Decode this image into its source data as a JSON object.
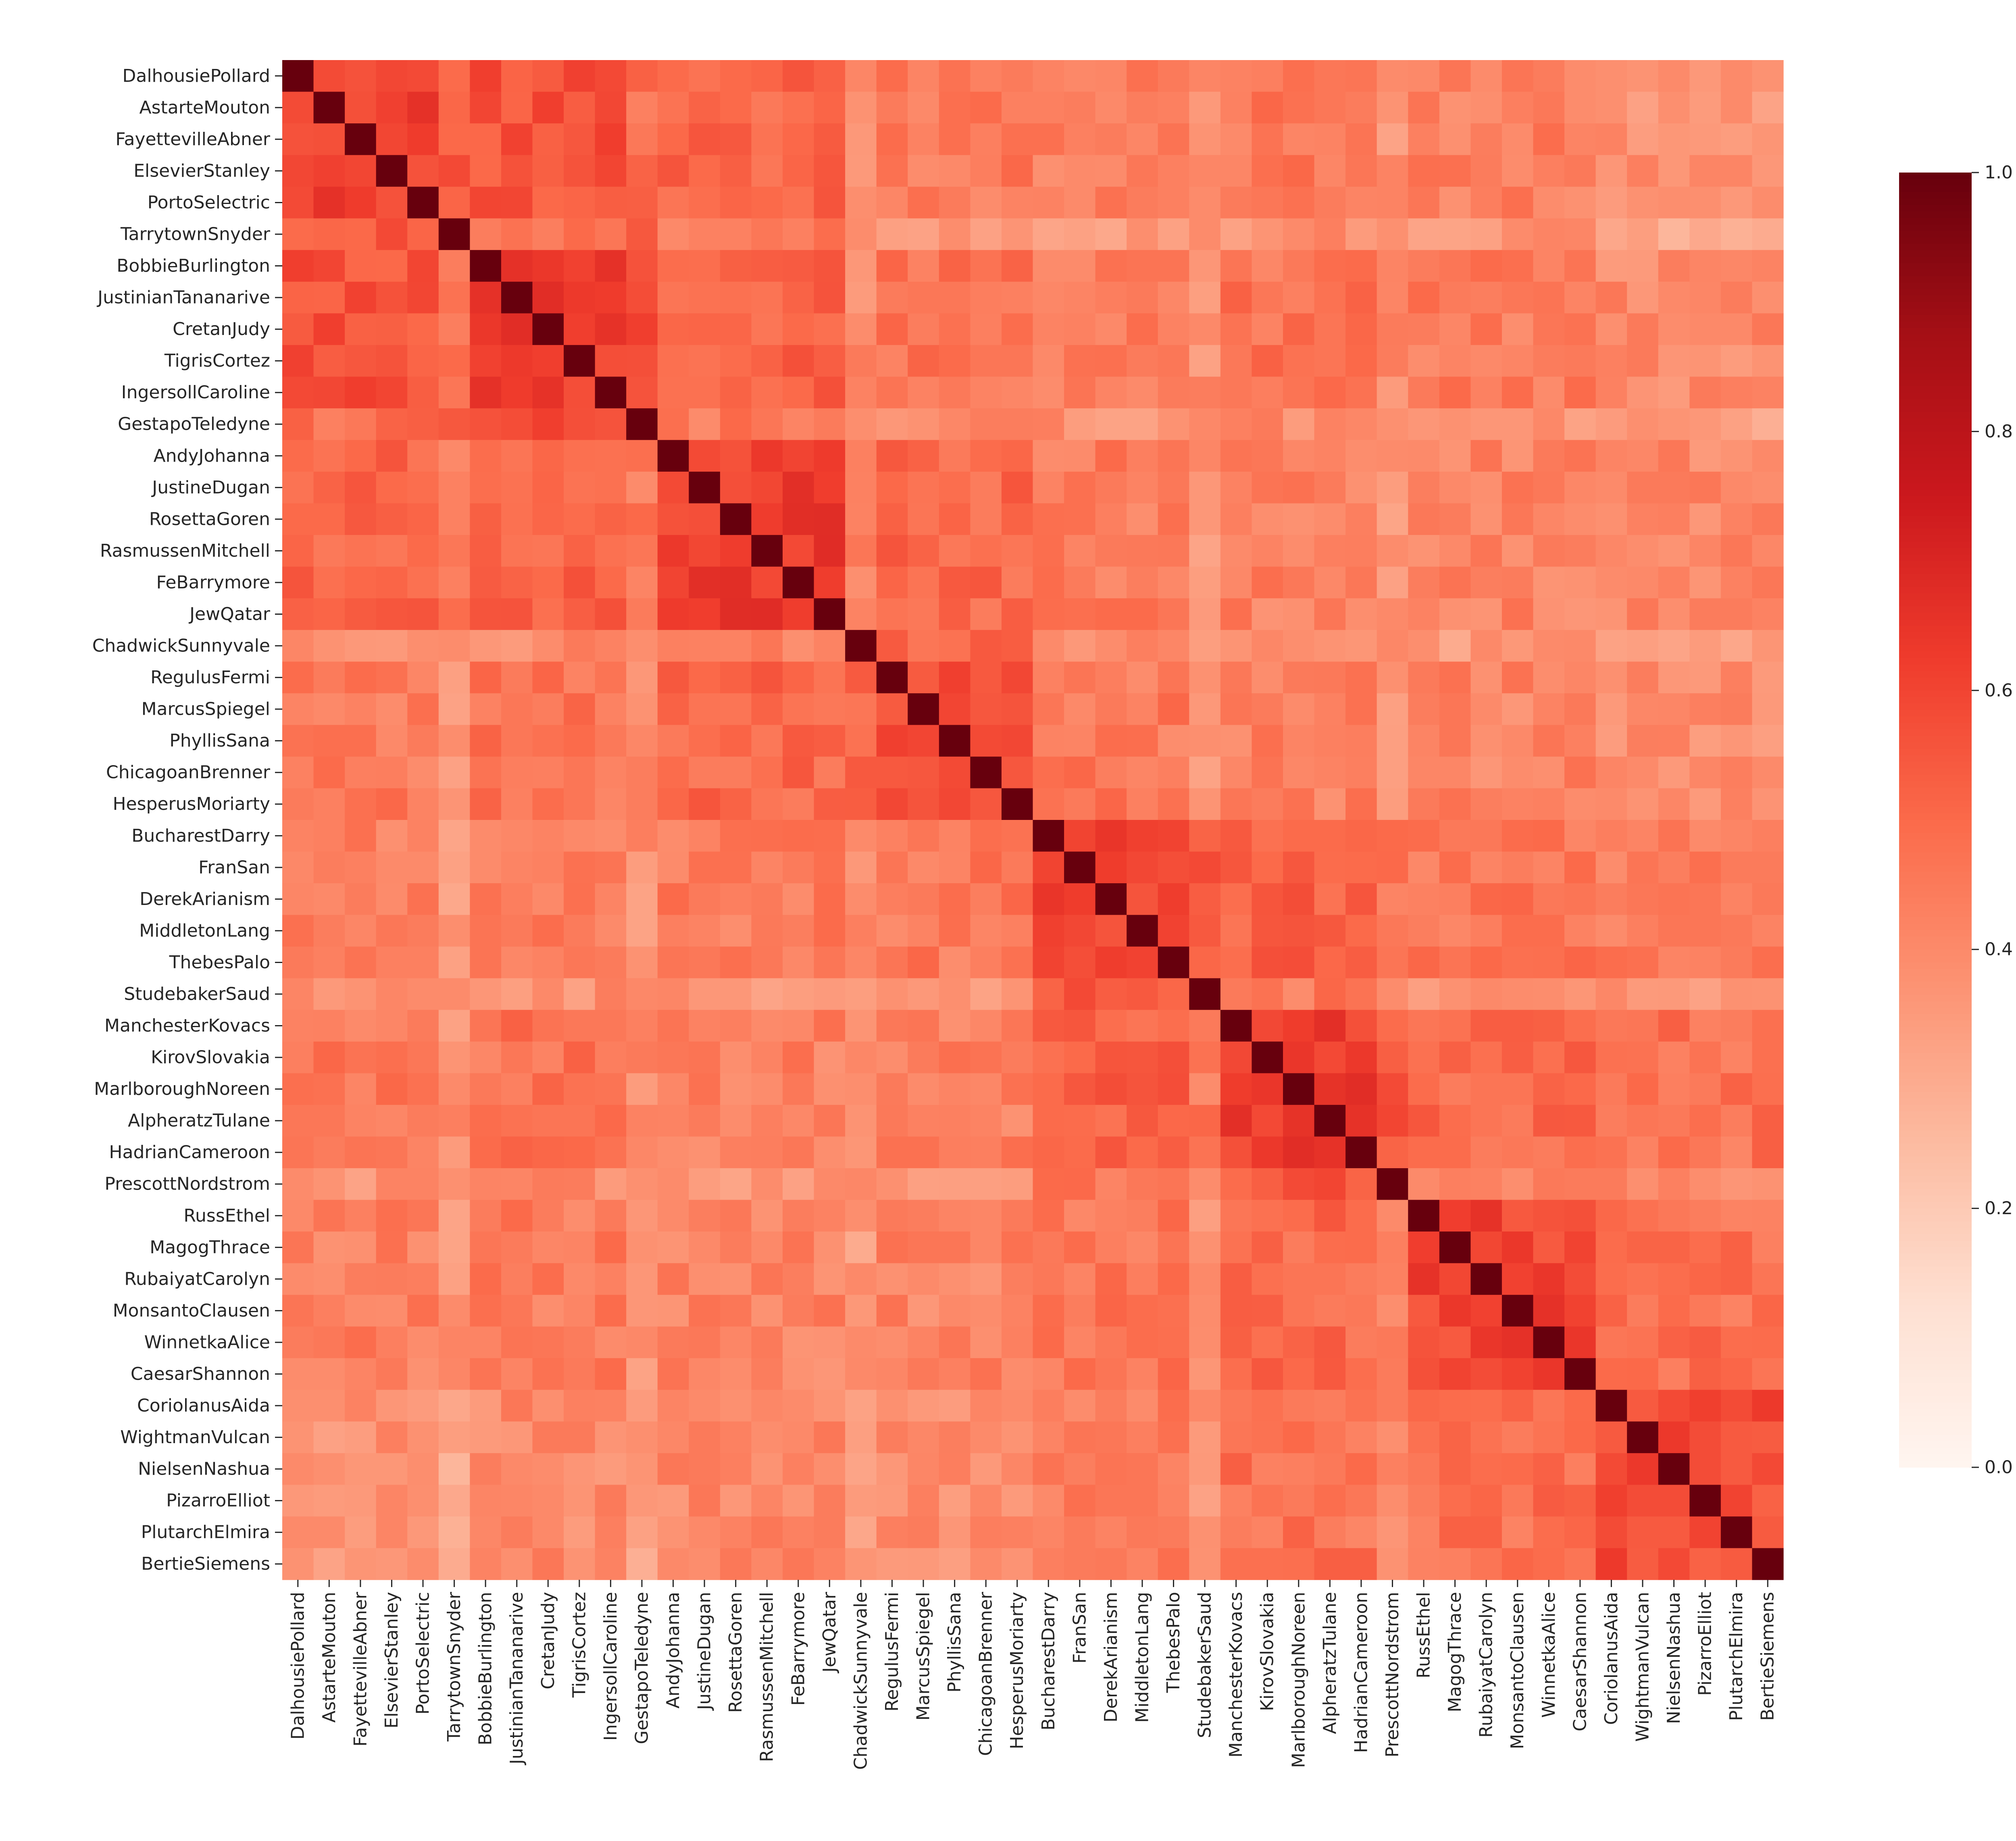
{
  "chart_data": {
    "type": "heatmap",
    "title": "",
    "xlabel": "",
    "ylabel": "",
    "colormap": "Reds",
    "colormap_stops": [
      "#fff5f0",
      "#fee0d2",
      "#fcbba1",
      "#fc9272",
      "#fb6a4a",
      "#ef3b2c",
      "#cb181d",
      "#a50f15",
      "#67000d"
    ],
    "vmin": 0.0,
    "vmax": 1.0,
    "colorbar_ticks": [
      "0.0",
      "0.2",
      "0.4",
      "0.6",
      "0.8",
      "1.0"
    ],
    "colorbar_tick_values": [
      0.0,
      0.2,
      0.4,
      0.6,
      0.8,
      1.0
    ],
    "labels": [
      "DalhousiePollard",
      "AstarteMouton",
      "FayettevilleAbner",
      "ElsevierStanley",
      "PortoSelectric",
      "TarrytownSnyder",
      "BobbieBurlington",
      "JustinianTananarive",
      "CretanJudy",
      "TigrisCortez",
      "IngersollCaroline",
      "GestapoTeledyne",
      "AndyJohanna",
      "JustineDugan",
      "RosettaGoren",
      "RasmussenMitchell",
      "FeBarrymore",
      "JewQatar",
      "ChadwickSunnyvale",
      "RegulusFermi",
      "MarcusSpiegel",
      "PhyllisSana",
      "ChicagoanBrenner",
      "HesperusMoriarty",
      "BucharestDarry",
      "FranSan",
      "DerekArianism",
      "MiddletonLang",
      "ThebesPalo",
      "StudebakerSaud",
      "ManchesterKovacs",
      "KirovSlovakia",
      "MarlboroughNoreen",
      "AlpheratzTulane",
      "HadrianCameroon",
      "PrescottNordstrom",
      "RussEthel",
      "MagogThrace",
      "RubaiyatCarolyn",
      "MonsantoClausen",
      "WinnetkaAlice",
      "CaesarShannon",
      "CoriolanusAida",
      "WightmanVulcan",
      "NielsenNashua",
      "PizarroElliot",
      "PlutarchElmira",
      "BertieSiemens"
    ],
    "y_tick_labels": [
      "DalhousiePollard",
      "AstarteMouton",
      "FayettevilleAbner",
      "ElsevierStanley",
      "PortoSelectric",
      "TarrytownSnyder",
      "BobbieBurlington",
      "JustinianTananarive",
      "CretanJudy",
      "TigrisCortez",
      "IngersollCaroline",
      "GestapoTeledyne",
      "AndyJohanna",
      "JustineDugan",
      "RosettaGoren",
      "RasmussenMitchell",
      "FeBarrymore",
      "JewQatar",
      "ChadwickSunnyvale",
      "RegulusFermi",
      "MarcusSpiegel",
      "PhyllisSana",
      "ChicagoanBrenner",
      "HesperusMoriarty",
      "BucharestDarry",
      "FranSan",
      "DerekArianism",
      "MiddletonLang",
      "ThebesPalo",
      "StudebakerSaud",
      "ManchesterKovacs",
      "KirovSlovakia",
      "MarlboroughNoreen",
      "AlpheratzTulane",
      "HadrianCameroon",
      "PrescottNordstrom",
      "RussEthel",
      "MagogThrace",
      "RubaiyatCarolyn",
      "MonsantoClausen",
      "WinnetkaAlice",
      "CaesarShannon",
      "CoriolanusAida",
      "WightmanVulcan",
      "NielsenNashua",
      "PizarroElliot",
      "PlutarchElmira",
      "BertieSiemens"
    ],
    "x_tick_labels": [
      "DalhousiePollard",
      "AstarteMouton",
      "FayettevilleAbner",
      "ElsevierStanley",
      "PortoSelectric",
      "TarrytownSnyder",
      "BobbieBurlington",
      "JustinianTananarive",
      "CretanJudy",
      "TigrisCortez",
      "IngersollCaroline",
      "GestapoTeledyne",
      "AndyJohanna",
      "JustineDugan",
      "RosettaGoren",
      "RasmussenMitchell",
      "FeBarrymore",
      "JewQatar",
      "ChadwickSunnyvale",
      "RegulusFermi",
      "MarcusSpiegel",
      "PhyllisSana",
      "ChicagoanBrenner",
      "HesperusMoriarty",
      "BucharestDarry",
      "FranSan",
      "DerekArianism",
      "MiddletonLang",
      "ThebesPalo",
      "StudebakerSaud",
      "ManchesterKovacs",
      "KirovSlovakia",
      "MarlboroughNoreen",
      "AlpheratzTulane",
      "HadrianCameroon",
      "PrescottNordstrom",
      "RussEthel",
      "MagogThrace",
      "RubaiyatCarolyn",
      "MonsantoClausen",
      "WinnetkaAlice",
      "CaesarShannon",
      "CoriolanusAida",
      "WightmanVulcan",
      "NielsenNashua",
      "PizarroElliot",
      "PlutarchElmira",
      "BertieSiemens"
    ],
    "group_size": 6,
    "block_values": [
      [
        0.62,
        0.56,
        0.5,
        0.45,
        0.43,
        0.45,
        0.43,
        0.38
      ],
      [
        0.56,
        0.63,
        0.52,
        0.47,
        0.45,
        0.47,
        0.44,
        0.4
      ],
      [
        0.5,
        0.52,
        0.62,
        0.5,
        0.44,
        0.43,
        0.42,
        0.4
      ],
      [
        0.45,
        0.47,
        0.5,
        0.58,
        0.45,
        0.43,
        0.42,
        0.39
      ],
      [
        0.43,
        0.45,
        0.44,
        0.45,
        0.6,
        0.52,
        0.46,
        0.44
      ],
      [
        0.45,
        0.47,
        0.43,
        0.43,
        0.52,
        0.62,
        0.5,
        0.47
      ],
      [
        0.43,
        0.44,
        0.42,
        0.42,
        0.46,
        0.5,
        0.6,
        0.48
      ],
      [
        0.38,
        0.4,
        0.4,
        0.39,
        0.44,
        0.47,
        0.48,
        0.58
      ]
    ],
    "low_rows": [
      5,
      11,
      18,
      29,
      35
    ],
    "diagonal_value": 1.0,
    "grid": false,
    "legend": "colorbar at right"
  }
}
